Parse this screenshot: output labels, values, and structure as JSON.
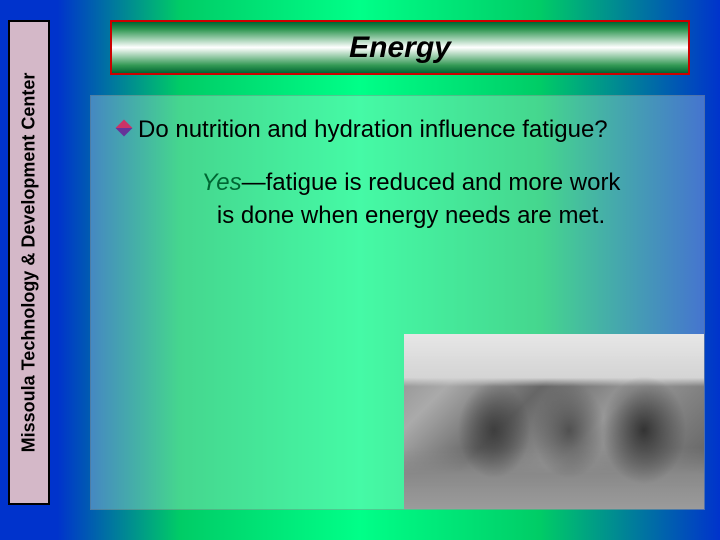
{
  "sidebar": {
    "label": "Missoula Technology & Development Center"
  },
  "title": {
    "text": "Energy"
  },
  "content": {
    "question": "Do nutrition and hydration influence fatigue?",
    "answer_yes": "Yes",
    "answer_rest": "—fatigue is reduced and more work is done when energy needs are met."
  },
  "photo": {
    "description": "grayscale-people-eating-photo"
  },
  "colors": {
    "title_border": "#cc0000",
    "yes_color": "#006633",
    "sidebar_bg": "#d4b8c8"
  }
}
